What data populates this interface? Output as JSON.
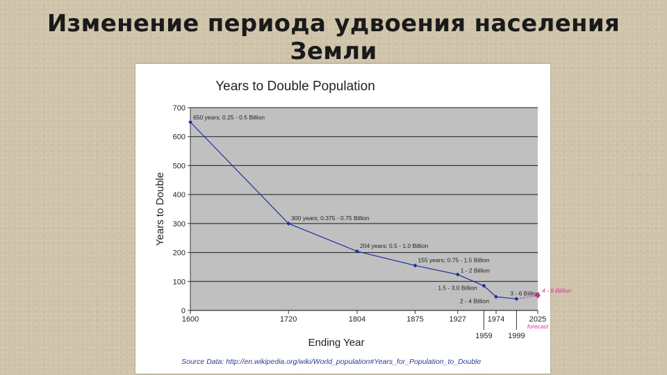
{
  "slide": {
    "title": "Изменение периода удвоения населения Земли"
  },
  "chart_data": {
    "type": "line",
    "title": "Years to Double Population",
    "xlabel": "Ending Year",
    "ylabel": "Years to Double",
    "ylim": [
      0,
      700
    ],
    "yticks": [
      0,
      100,
      200,
      300,
      400,
      500,
      600,
      700
    ],
    "xlim": [
      1600,
      2025
    ],
    "xticks_top": [
      "1600",
      "1720",
      "1804",
      "1875",
      "1927",
      "1974",
      "2025"
    ],
    "xticks_bottom": [
      "1959",
      "1999"
    ],
    "forecast_label": "forecast",
    "grid": true,
    "points": [
      {
        "x": 1600,
        "y": 650,
        "label": "650 years; 0.25 - 0.5 Billion"
      },
      {
        "x": 1720,
        "y": 300,
        "label": "300 years; 0.375 - 0.75 Billion"
      },
      {
        "x": 1804,
        "y": 204,
        "label": "204 years; 0.5 - 1.0 Billion"
      },
      {
        "x": 1875,
        "y": 155,
        "label": "155 years; 0.75 - 1.5 Billion"
      },
      {
        "x": 1927,
        "y": 124,
        "label": "1 - 2 Billion"
      },
      {
        "x": 1959,
        "y": 85,
        "label": "1.5 - 3.0 Billion"
      },
      {
        "x": 1974,
        "y": 47,
        "label": "2 - 4 Billion"
      },
      {
        "x": 1999,
        "y": 40,
        "label": "3 - 6 Billion"
      }
    ],
    "forecast": {
      "x": 2025,
      "y": 51,
      "label": "4 - 8 Billion"
    },
    "source": "Source Data: http://en.wikipedia.org/wiki/World_population#Years_for_Population_to_Double",
    "colors": {
      "series": "#1f2f9e",
      "forecast": "#e0309a",
      "plot_bg": "#c0c0c0",
      "grid": "#1a1a1a"
    }
  }
}
